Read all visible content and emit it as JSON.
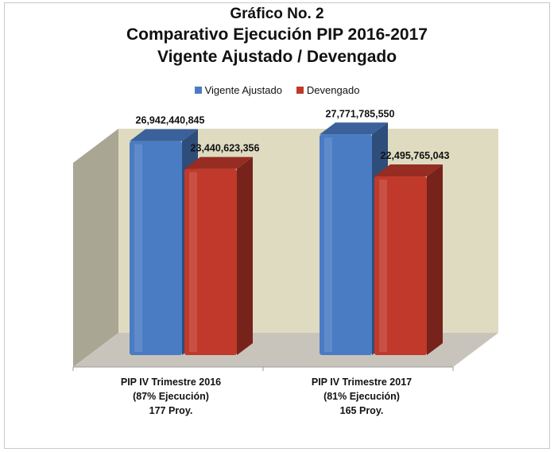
{
  "header": {
    "line1": "Gráfico No. 2",
    "line2": "Comparativo Ejecución PIP 2016-2017",
    "line3": "Vigente Ajustado / Devengado"
  },
  "colors": {
    "vigente": "#4a7cc4",
    "devengado": "#c0392b",
    "wall_back": "#dedbc1",
    "wall_side": "#a9a794",
    "floor": "#c8c4bb"
  },
  "chart_data": {
    "type": "bar",
    "title": "Gráfico No. 2 — Comparativo Ejecución PIP 2016-2017 — Vigente Ajustado / Devengado",
    "categories": [
      [
        "PIP IV Trimestre 2016",
        "(87% Ejecución)",
        "177 Proy."
      ],
      [
        "PIP IV Trimestre 2017",
        "(81% Ejecución)",
        "165 Proy."
      ]
    ],
    "series": [
      {
        "name": "Vigente Ajustado",
        "values": [
          26942440845,
          27771785550
        ],
        "labels": [
          "26,942,440,845",
          "27,771,785,550"
        ]
      },
      {
        "name": "Devengado",
        "values": [
          23440623356,
          22495765043
        ],
        "labels": [
          "23,440,623,356",
          "22,495,765,043"
        ]
      }
    ],
    "ylim": [
      0,
      30000000000
    ],
    "grid": false,
    "legend_position": "top",
    "style": "3d-column"
  }
}
